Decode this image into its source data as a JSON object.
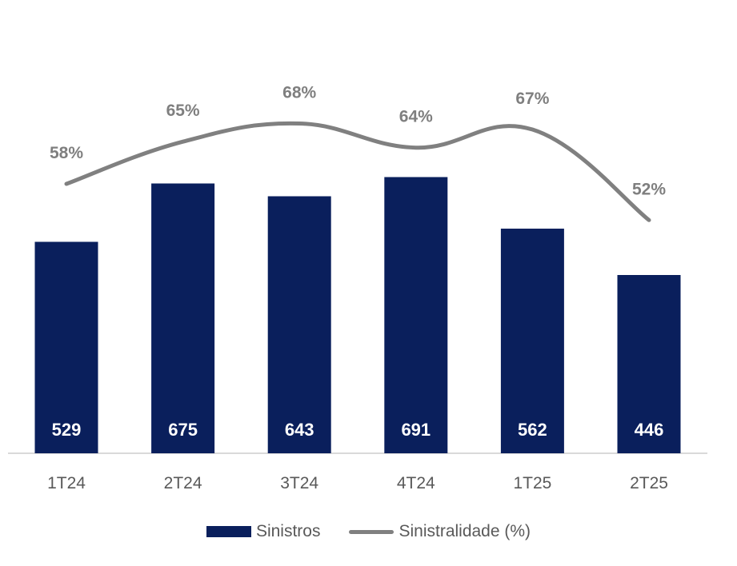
{
  "chart_data": {
    "type": "bar",
    "categories": [
      "1T24",
      "2T24",
      "3T24",
      "4T24",
      "1T25",
      "2T25"
    ],
    "series": [
      {
        "name": "Sinistros",
        "type": "bar",
        "values": [
          529,
          675,
          643,
          691,
          562,
          446
        ],
        "labels": [
          "529",
          "675",
          "643",
          "691",
          "562",
          "446"
        ],
        "color": "#0a1f5c"
      },
      {
        "name": "Sinistralidade (%)",
        "type": "line",
        "values": [
          58,
          65,
          68,
          64,
          67,
          52
        ],
        "labels": [
          "58%",
          "65%",
          "68%",
          "64%",
          "67%",
          "52%"
        ],
        "color": "#808080"
      }
    ],
    "title": "",
    "xlabel": "",
    "ylabel": "",
    "grid": false,
    "legend_position": "bottom"
  }
}
